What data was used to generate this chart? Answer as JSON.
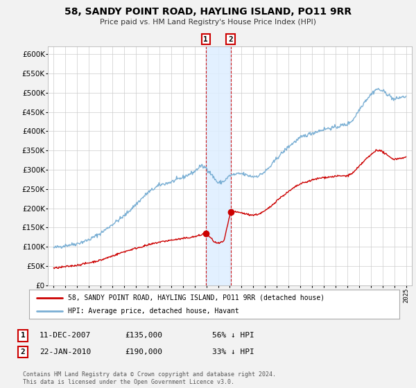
{
  "title": "58, SANDY POINT ROAD, HAYLING ISLAND, PO11 9RR",
  "subtitle": "Price paid vs. HM Land Registry's House Price Index (HPI)",
  "legend_line1": "58, SANDY POINT ROAD, HAYLING ISLAND, PO11 9RR (detached house)",
  "legend_line2": "HPI: Average price, detached house, Havant",
  "transaction1_date": "11-DEC-2007",
  "transaction1_price": "£135,000",
  "transaction1_hpi": "56% ↓ HPI",
  "transaction1_x": 2007.95,
  "transaction1_y": 135000,
  "transaction2_date": "22-JAN-2010",
  "transaction2_price": "£190,000",
  "transaction2_hpi": "33% ↓ HPI",
  "transaction2_x": 2010.06,
  "transaction2_y": 190000,
  "red_color": "#cc0000",
  "blue_color": "#7aafd4",
  "shade_color": "#ddeeff",
  "grid_color": "#cccccc",
  "background_color": "#f2f2f2",
  "plot_bg_color": "#ffffff",
  "footer": "Contains HM Land Registry data © Crown copyright and database right 2024.\nThis data is licensed under the Open Government Licence v3.0.",
  "ylim": [
    0,
    620000
  ],
  "xlim": [
    1994.5,
    2025.5
  ],
  "yticks": [
    0,
    50000,
    100000,
    150000,
    200000,
    250000,
    300000,
    350000,
    400000,
    450000,
    500000,
    550000,
    600000
  ],
  "xticks": [
    1995,
    1996,
    1997,
    1998,
    1999,
    2000,
    2001,
    2002,
    2003,
    2004,
    2005,
    2006,
    2007,
    2008,
    2009,
    2010,
    2011,
    2012,
    2013,
    2014,
    2015,
    2016,
    2017,
    2018,
    2019,
    2020,
    2021,
    2022,
    2023,
    2024,
    2025
  ]
}
